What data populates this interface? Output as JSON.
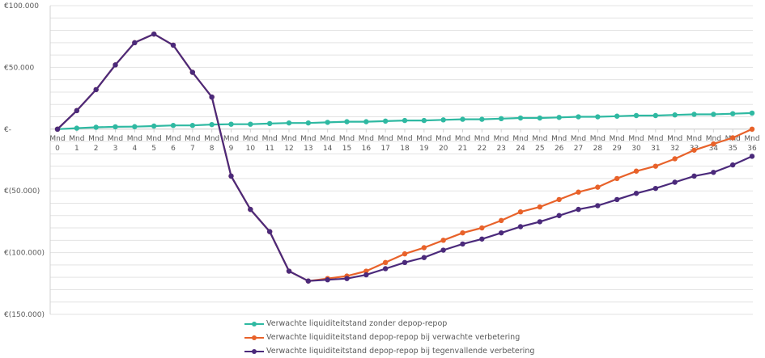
{
  "chart_data": {
    "type": "line",
    "categories": [
      [
        "Mnd",
        "0"
      ],
      [
        "Mnd",
        "1"
      ],
      [
        "Mnd",
        "2"
      ],
      [
        "Mnd",
        "3"
      ],
      [
        "Mnd",
        "4"
      ],
      [
        "Mnd",
        "5"
      ],
      [
        "Mnd",
        "6"
      ],
      [
        "Mnd",
        "7"
      ],
      [
        "Mnd",
        "8"
      ],
      [
        "Mnd",
        "9"
      ],
      [
        "Mnd",
        "10"
      ],
      [
        "Mnd",
        "11"
      ],
      [
        "Mnd",
        "12"
      ],
      [
        "Mnd",
        "13"
      ],
      [
        "Mnd",
        "14"
      ],
      [
        "Mnd",
        "15"
      ],
      [
        "Mnd",
        "16"
      ],
      [
        "Mnd",
        "17"
      ],
      [
        "Mnd",
        "18"
      ],
      [
        "Mnd",
        "19"
      ],
      [
        "Mnd",
        "20"
      ],
      [
        "Mnd",
        "21"
      ],
      [
        "Mnd",
        "22"
      ],
      [
        "Mnd",
        "23"
      ],
      [
        "Mnd",
        "24"
      ],
      [
        "Mnd",
        "25"
      ],
      [
        "Mnd",
        "26"
      ],
      [
        "Mnd",
        "27"
      ],
      [
        "Mnd",
        "28"
      ],
      [
        "Mnd",
        "29"
      ],
      [
        "Mnd",
        "30"
      ],
      [
        "Mnd",
        "31"
      ],
      [
        "Mnd",
        "32"
      ],
      [
        "Mnd",
        "33"
      ],
      [
        "Mnd",
        "34"
      ],
      [
        "Mnd",
        "35"
      ],
      [
        "Mnd",
        "36"
      ]
    ],
    "y_ticks": [
      {
        "value": 100000,
        "label": "€100.000"
      },
      {
        "value": 50000,
        "label": "€50.000"
      },
      {
        "value": 0,
        "label": "€-"
      },
      {
        "value": -50000,
        "label": "€(50.000)"
      },
      {
        "value": -100000,
        "label": "€(100.000)"
      },
      {
        "value": -150000,
        "label": "€(150.000)"
      }
    ],
    "ylim": [
      -150000,
      100000
    ],
    "grid": true,
    "legend_position": "bottom",
    "series": [
      {
        "name": "Verwachte liquiditeitstand zonder depop-repop",
        "color": "#2fb9a2",
        "values": [
          0,
          800,
          1500,
          1900,
          2000,
          2500,
          3000,
          3000,
          3700,
          4000,
          4000,
          4500,
          5000,
          5000,
          5500,
          6000,
          6000,
          6500,
          7000,
          7000,
          7500,
          8000,
          8000,
          8500,
          9000,
          9000,
          9500,
          10000,
          10000,
          10500,
          11000,
          11000,
          11500,
          12000,
          12000,
          12500,
          13000
        ]
      },
      {
        "name": "Verwachte liquiditeitstand depop-repop bij verwachte verbetering",
        "color": "#e8622a",
        "values": [
          0,
          15000,
          32000,
          52000,
          70000,
          77000,
          68000,
          46000,
          26000,
          -38000,
          -65000,
          -83000,
          -115000,
          -123000,
          -121000,
          -119000,
          -115000,
          -108000,
          -101000,
          -96000,
          -90000,
          -84000,
          -80000,
          -74000,
          -67000,
          -63000,
          -57000,
          -51000,
          -47000,
          -40000,
          -34000,
          -30000,
          -24000,
          -17000,
          -12000,
          -7000,
          0
        ]
      },
      {
        "name": "Verwachte liquiditeitstand depop-repop bij tegenvallende verbetering",
        "color": "#4b2a7b",
        "values": [
          0,
          15000,
          32000,
          52000,
          70000,
          77000,
          68000,
          46000,
          26000,
          -38000,
          -65000,
          -83000,
          -115000,
          -123000,
          -122000,
          -121000,
          -118000,
          -113000,
          -108000,
          -104000,
          -98000,
          -93000,
          -89000,
          -84000,
          -79000,
          -75000,
          -70000,
          -65000,
          -62000,
          -57000,
          -52000,
          -48000,
          -43000,
          -38000,
          -35000,
          -29000,
          -22000
        ]
      }
    ]
  }
}
